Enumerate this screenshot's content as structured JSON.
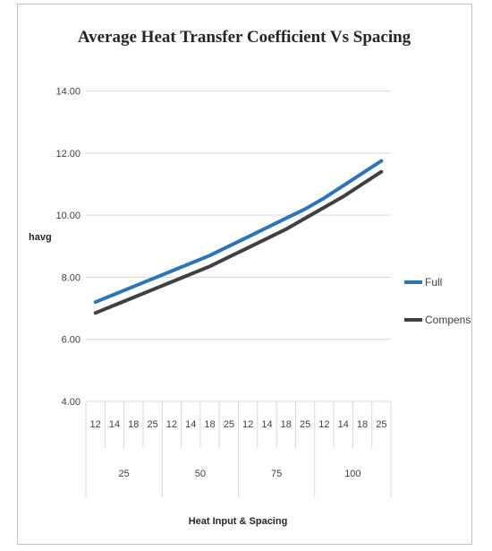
{
  "chart_data": {
    "type": "line",
    "title": "Average Heat Transfer Coefficient Vs Spacing",
    "xlabel": "Heat Input & Spacing",
    "ylabel": "havg",
    "ylim": [
      4,
      15
    ],
    "yticks": [
      "4.00",
      "6.00",
      "8.00",
      "10.00",
      "12.00",
      "14.00"
    ],
    "grid": true,
    "legend_position": "right",
    "categories": {
      "spacing": [
        "12",
        "14",
        "18",
        "25",
        "12",
        "14",
        "18",
        "25",
        "12",
        "14",
        "18",
        "25",
        "12",
        "14",
        "18",
        "25"
      ],
      "heat_input": [
        "25",
        "50",
        "75",
        "100"
      ]
    },
    "series": [
      {
        "name": "Full",
        "color": "#2e75b6",
        "values": [
          7.2,
          7.45,
          7.7,
          7.95,
          8.2,
          8.45,
          8.7,
          9.0,
          9.3,
          9.6,
          9.9,
          10.2,
          10.55,
          10.95,
          11.35,
          11.75
        ]
      },
      {
        "name": "Compensatory",
        "color": "#404040",
        "values": [
          6.85,
          7.1,
          7.35,
          7.6,
          7.85,
          8.1,
          8.35,
          8.65,
          8.95,
          9.25,
          9.55,
          9.9,
          10.25,
          10.6,
          11.0,
          11.4
        ]
      }
    ]
  },
  "colors": {
    "gridline": "#d9d9d9",
    "border": "#bfbfbf"
  }
}
